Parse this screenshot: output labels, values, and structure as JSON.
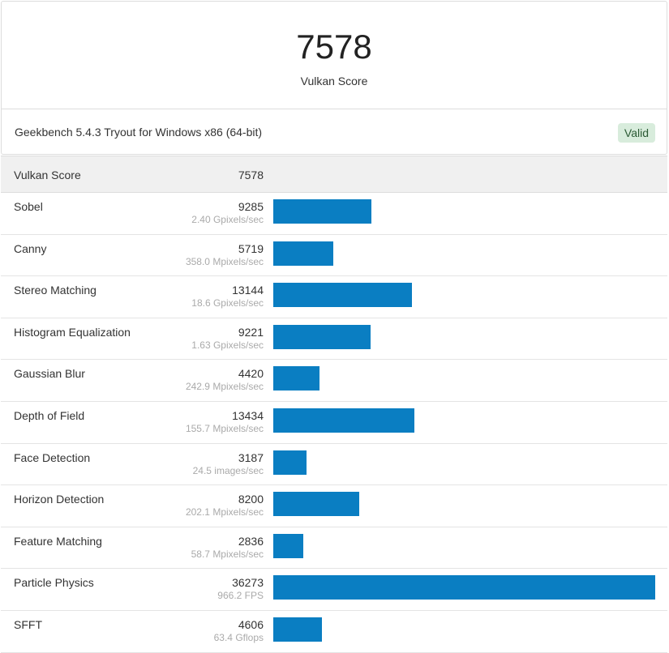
{
  "summary": {
    "score": "7578",
    "score_label": "Vulkan Score",
    "version_text": "Geekbench 5.4.3 Tryout for Windows x86 (64-bit)",
    "valid_badge": "Valid"
  },
  "table": {
    "header": {
      "name": "Vulkan Score",
      "value": "7578"
    },
    "max_score": 36273,
    "rows": [
      {
        "name": "Sobel",
        "score": "9285",
        "rate": "2.40 Gpixels/sec",
        "value": 9285
      },
      {
        "name": "Canny",
        "score": "5719",
        "rate": "358.0 Mpixels/sec",
        "value": 5719
      },
      {
        "name": "Stereo Matching",
        "score": "13144",
        "rate": "18.6 Gpixels/sec",
        "value": 13144
      },
      {
        "name": "Histogram Equalization",
        "score": "9221",
        "rate": "1.63 Gpixels/sec",
        "value": 9221
      },
      {
        "name": "Gaussian Blur",
        "score": "4420",
        "rate": "242.9 Mpixels/sec",
        "value": 4420
      },
      {
        "name": "Depth of Field",
        "score": "13434",
        "rate": "155.7 Mpixels/sec",
        "value": 13434
      },
      {
        "name": "Face Detection",
        "score": "3187",
        "rate": "24.5 images/sec",
        "value": 3187
      },
      {
        "name": "Horizon Detection",
        "score": "8200",
        "rate": "202.1 Mpixels/sec",
        "value": 8200
      },
      {
        "name": "Feature Matching",
        "score": "2836",
        "rate": "58.7 Mpixels/sec",
        "value": 2836
      },
      {
        "name": "Particle Physics",
        "score": "36273",
        "rate": "966.2 FPS",
        "value": 36273
      },
      {
        "name": "SFFT",
        "score": "4606",
        "rate": "63.4 Gflops",
        "value": 4606
      }
    ]
  },
  "colors": {
    "bar": "#0a7ec2",
    "valid_bg": "#d8ecdc",
    "header_bg": "#f0f0f0"
  }
}
